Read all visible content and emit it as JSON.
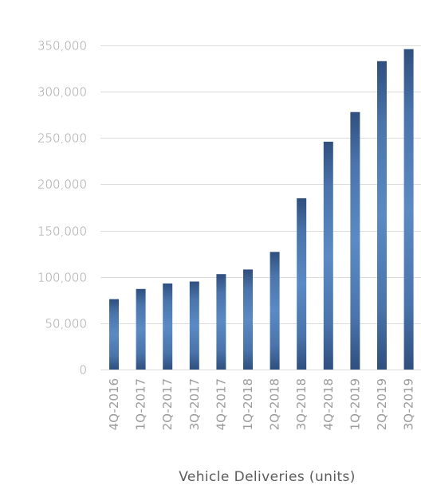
{
  "chart_data": {
    "type": "bar",
    "title": "",
    "xlabel": "Vehicle Deliveries (units)",
    "ylabel": "",
    "ylim": [
      0,
      350000
    ],
    "yticks": [
      0,
      50000,
      100000,
      150000,
      200000,
      250000,
      300000,
      350000
    ],
    "ytick_labels": [
      "0",
      "50,000",
      "100,000",
      "150,000",
      "200,000",
      "250,000",
      "300,000",
      "350,000"
    ],
    "grid": true,
    "legend": "none",
    "categories": [
      "4Q-2016",
      "1Q-2017",
      "2Q-2017",
      "3Q-2017",
      "4Q-2017",
      "1Q-2018",
      "2Q-2018",
      "3Q-2018",
      "4Q-2018",
      "1Q-2019",
      "2Q-2019",
      "3Q-2019"
    ],
    "values": [
      76000,
      87000,
      93000,
      95000,
      103000,
      108000,
      127000,
      185000,
      246000,
      278000,
      333000,
      346000
    ],
    "colors": {
      "bar_edge": "#2f4f7e",
      "bar_center": "#5b8ac4",
      "grid": "#dcdcdc",
      "tick_text": "#9b9b9b",
      "label_text": "#5b5b5b"
    }
  }
}
